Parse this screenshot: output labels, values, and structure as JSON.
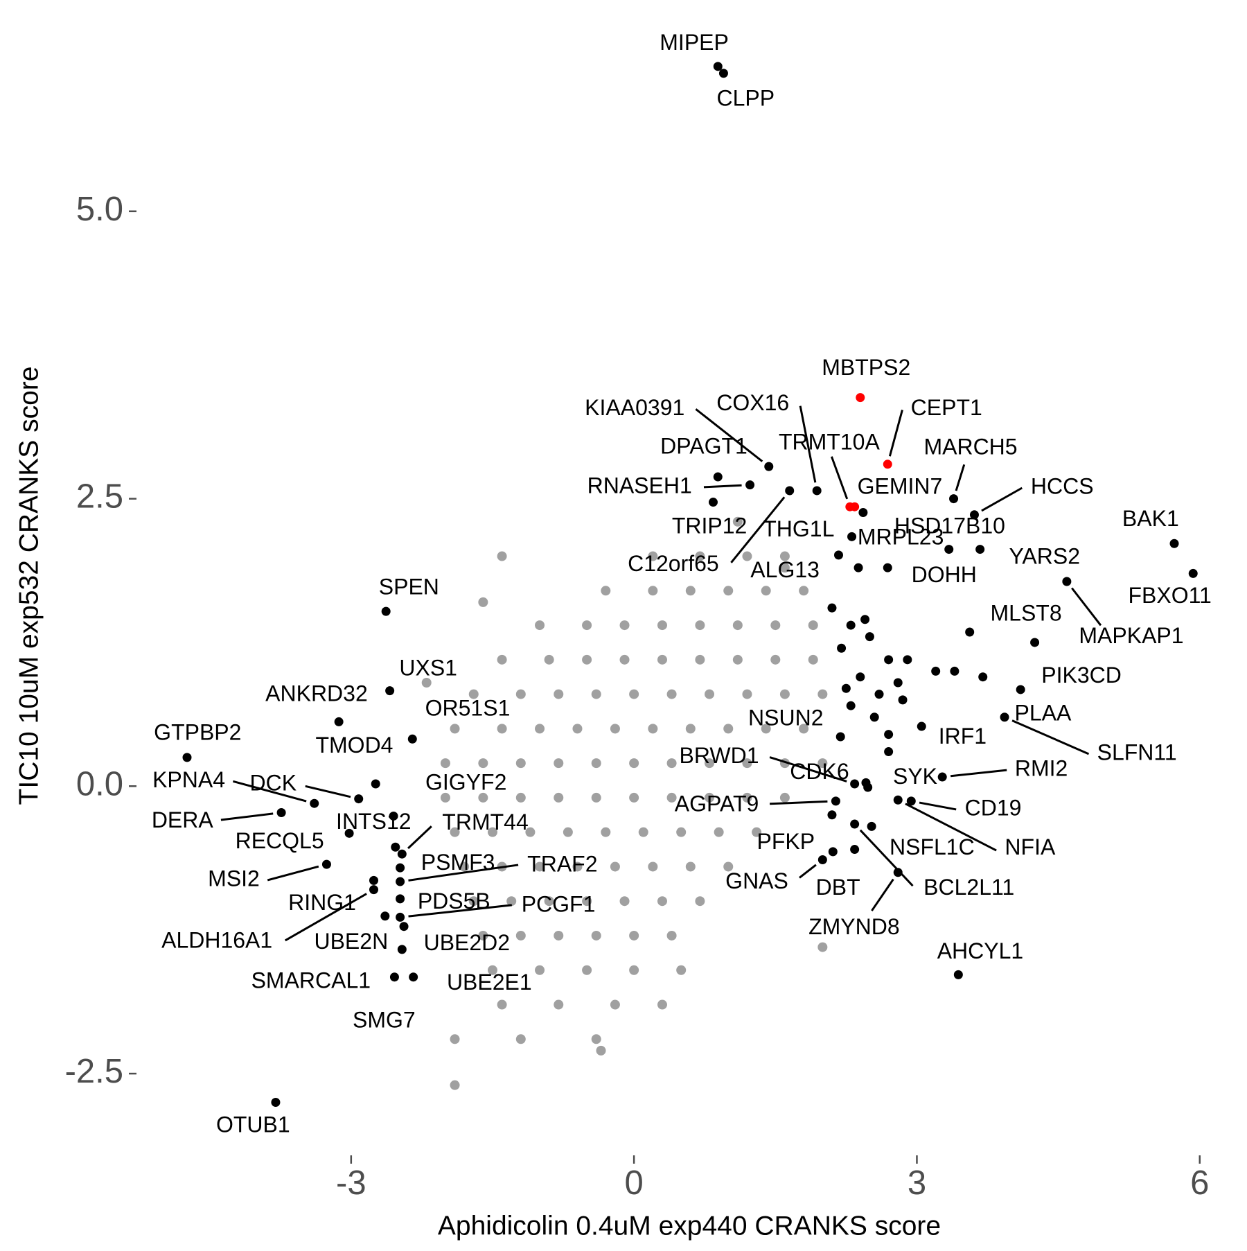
{
  "chart_data": {
    "type": "scatter",
    "xlabel": "Aphidicolin 0.4uM exp440 CRANKS score",
    "ylabel": "TIC10 10uM exp532 CRANKS score",
    "xlim": [
      -5.1,
      6.2
    ],
    "ylim": [
      -3.0,
      6.5
    ],
    "xticks": [
      -3,
      0,
      3,
      6
    ],
    "yticks": [
      -2.5,
      {
        "value": 0,
        "label": "0.0"
      },
      2.5,
      {
        "value": 5,
        "label": "5.0"
      }
    ],
    "grid": false,
    "series": [
      {
        "color": "#a0a0a0",
        "x": [
          0.2,
          0.7,
          1.2,
          1.6,
          -0.3,
          0.2,
          0.6,
          1.0,
          1.4,
          1.8,
          -1.0,
          -0.5,
          -0.1,
          0.3,
          0.7,
          1.1,
          1.5,
          1.9,
          -1.4,
          -0.9,
          -0.5,
          -0.1,
          0.3,
          0.7,
          1.1,
          1.5,
          1.9,
          -1.7,
          -1.2,
          -0.8,
          -0.4,
          0.0,
          0.4,
          0.8,
          1.2,
          1.6,
          2.0,
          -1.9,
          -1.4,
          -1.0,
          -0.6,
          -0.2,
          0.2,
          0.6,
          1.0,
          1.4,
          1.8,
          -2.0,
          -1.6,
          -1.2,
          -0.8,
          -0.4,
          0.0,
          0.4,
          0.8,
          1.2,
          1.6,
          2.0,
          -2.0,
          -1.6,
          -1.2,
          -0.8,
          -0.4,
          0.0,
          0.4,
          0.8,
          1.2,
          1.6,
          -1.9,
          -1.5,
          -1.1,
          -0.7,
          -0.3,
          0.1,
          0.5,
          0.9,
          1.3,
          -1.8,
          -1.4,
          -1.0,
          -0.6,
          -0.2,
          0.2,
          0.6,
          1.0,
          -1.7,
          -1.3,
          -0.9,
          -0.5,
          -0.1,
          0.3,
          0.7,
          -1.6,
          -1.2,
          -0.8,
          -0.4,
          0.0,
          0.4,
          -1.5,
          -1.0,
          -0.5,
          0.0,
          0.5,
          -1.4,
          -0.8,
          -0.2,
          0.3,
          -1.9,
          -1.2,
          -0.4,
          -1.4,
          -1.6,
          -2.2,
          1.1,
          2.0,
          -1.9,
          -0.35,
          1.6
        ],
        "y": [
          2.0,
          2.0,
          2.0,
          2.0,
          1.7,
          1.7,
          1.7,
          1.7,
          1.7,
          1.7,
          1.4,
          1.4,
          1.4,
          1.4,
          1.4,
          1.4,
          1.4,
          1.4,
          1.1,
          1.1,
          1.1,
          1.1,
          1.1,
          1.1,
          1.1,
          1.1,
          1.1,
          0.8,
          0.8,
          0.8,
          0.8,
          0.8,
          0.8,
          0.8,
          0.8,
          0.8,
          0.8,
          0.5,
          0.5,
          0.5,
          0.5,
          0.5,
          0.5,
          0.5,
          0.5,
          0.5,
          0.5,
          0.2,
          0.2,
          0.2,
          0.2,
          0.2,
          0.2,
          0.2,
          0.2,
          0.2,
          0.2,
          0.2,
          -0.1,
          -0.1,
          -0.1,
          -0.1,
          -0.1,
          -0.1,
          -0.1,
          -0.1,
          -0.1,
          -0.1,
          -0.4,
          -0.4,
          -0.4,
          -0.4,
          -0.4,
          -0.4,
          -0.4,
          -0.4,
          -0.4,
          -0.7,
          -0.7,
          -0.7,
          -0.7,
          -0.7,
          -0.7,
          -0.7,
          -0.7,
          -1.0,
          -1.0,
          -1.0,
          -1.0,
          -1.0,
          -1.0,
          -1.0,
          -1.3,
          -1.3,
          -1.3,
          -1.3,
          -1.3,
          -1.3,
          -1.6,
          -1.6,
          -1.6,
          -1.6,
          -1.6,
          -1.9,
          -1.9,
          -1.9,
          -1.9,
          -2.2,
          -2.2,
          -2.2,
          2.0,
          1.6,
          0.9,
          2.3,
          -1.4,
          -2.6,
          -2.3,
          1.9
        ]
      },
      {
        "color": "#000000",
        "x": [
          0.89,
          0.95,
          1.43,
          1.94,
          0.89,
          1.23,
          0.84,
          1.65,
          2.31,
          2.43,
          3.39,
          3.61,
          3.34,
          2.38,
          5.73,
          3.67,
          5.93,
          2.17,
          2.69,
          4.59,
          3.56,
          4.25,
          4.1,
          3.93,
          3.05,
          3.27,
          2.48,
          2.94,
          2.8,
          2.52,
          2.34,
          2.8,
          2.34,
          2.0,
          2.11,
          3.44,
          2.19,
          2.34,
          2.46,
          2.14,
          -2.63,
          -2.59,
          -3.13,
          -2.35,
          -2.74,
          -4.74,
          -3.39,
          -2.92,
          -3.74,
          -3.02,
          -2.55,
          -2.53,
          -2.46,
          -3.26,
          -2.48,
          -2.48,
          -2.76,
          -2.76,
          -2.48,
          -2.48,
          -2.64,
          -2.44,
          -2.46,
          -2.34,
          -2.54,
          -3.8,
          2.3,
          2.5,
          2.2,
          2.7,
          2.4,
          2.6,
          2.3,
          2.85,
          2.55,
          2.7,
          2.7,
          3.2,
          3.7,
          2.9,
          2.25,
          2.8,
          3.4,
          2.45,
          2.1,
          2.1
        ],
        "y": [
          6.26,
          6.2,
          2.78,
          2.57,
          2.69,
          2.62,
          2.47,
          2.57,
          2.17,
          2.38,
          2.5,
          2.36,
          2.06,
          1.9,
          2.11,
          2.06,
          1.85,
          2.01,
          1.9,
          1.78,
          1.34,
          1.25,
          0.84,
          0.6,
          0.52,
          0.08,
          -0.01,
          -0.13,
          -0.12,
          -0.35,
          -0.33,
          -0.75,
          -0.55,
          -0.64,
          -0.57,
          -1.64,
          0.43,
          0.02,
          0.03,
          -0.13,
          1.52,
          0.83,
          0.56,
          0.41,
          0.02,
          0.25,
          -0.15,
          -0.11,
          -0.23,
          -0.41,
          -0.26,
          -0.53,
          -0.59,
          -0.68,
          -0.71,
          -0.83,
          -0.82,
          -0.9,
          -0.98,
          -1.14,
          -1.13,
          -1.22,
          -1.42,
          -1.66,
          -1.66,
          -2.75,
          1.4,
          1.3,
          1.2,
          1.1,
          0.95,
          0.8,
          0.7,
          0.75,
          0.6,
          0.45,
          0.3,
          1.0,
          0.95,
          1.1,
          0.85,
          0.9,
          1.0,
          1.45,
          1.55,
          -0.25
        ],
        "labels": [
          "MIPEP",
          "CLPP",
          "KIAA0391",
          "COX16",
          "DPAGT1",
          "RNASEH1",
          "TRIP12",
          "C12orf65",
          "THG1L",
          "GEMIN7",
          "MARCH5",
          "HCCS",
          "HSD17B10",
          "MRPL23",
          "BAK1",
          "YARS2",
          "FBXO11",
          "ALG13",
          "DOHH",
          "MAPKAP1",
          "MLST8",
          "PIK3CD",
          "PLAA",
          "SLFN11",
          "IRF1",
          "RMI2",
          "SYK",
          "CD19",
          "NFIA",
          "NSFL1C",
          "BCL2L11",
          "ZMYND8",
          "DBT",
          "GNAS",
          "PFKP",
          "AHCYL1",
          "NSUN2",
          "BRWD1",
          "CDK6",
          "AGPAT9",
          "SPEN",
          "UXS1",
          "ANKRD32",
          "OR51S1",
          "TMOD4",
          "GTPBP2",
          "KPNA4",
          "DCK",
          "DERA",
          "RECQL5",
          "INTS12",
          "GIGYF2",
          "TRMT44",
          "MSI2",
          "PSMF3",
          "TRAF2",
          "RING1",
          "ALDH16A1",
          "PDS5B",
          "PCGF1",
          "UBE2N",
          "UBE2D2",
          "SMARCAL1",
          "UBE2E1",
          "SMG7",
          "OTUB1",
          null,
          null,
          null,
          null,
          null,
          null,
          null,
          null,
          null,
          null,
          null,
          null,
          null,
          null,
          null,
          null,
          null,
          null,
          null,
          null
        ]
      },
      {
        "color": "#ff0000",
        "x": [
          2.4,
          2.69,
          2.29,
          2.34
        ],
        "y": [
          3.38,
          2.8,
          2.43,
          2.43
        ],
        "labels": [
          "MBTPS2",
          "CEPT1",
          "TRMT10A",
          null
        ]
      }
    ]
  }
}
